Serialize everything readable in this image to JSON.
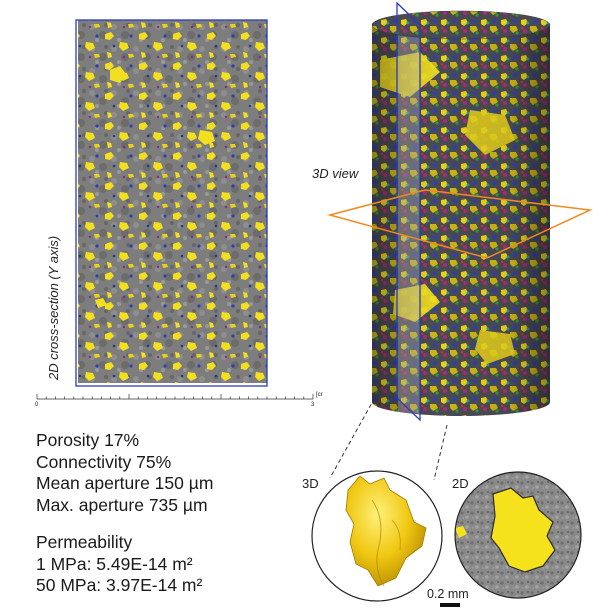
{
  "labels": {
    "cross_section": "2D cross-section  (Y axis)",
    "view3d": "3D view",
    "zoom3d": "3D",
    "zoom2d": "2D",
    "scalebar": "0.2 mm"
  },
  "ruler": {
    "start": "0",
    "end": "3",
    "unit": "[cr"
  },
  "stats": {
    "porosity": "Porosity 17%",
    "connectivity": "Connectivity 75%",
    "mean_aperture": "Mean aperture 150 µm",
    "max_aperture": "Max. aperture  735 µm",
    "permeability_title": "Permeability",
    "perm_1mpa": "1 MPa: 5.49E-14 m²",
    "perm_50mpa": "50 MPa: 3.97E-14 m²"
  },
  "colors": {
    "pore_yellow": "#f2df1f",
    "rock_gray": "#7a7a7a",
    "frame_blue": "#2b3bbd",
    "slice_orange": "#f08a1c"
  }
}
